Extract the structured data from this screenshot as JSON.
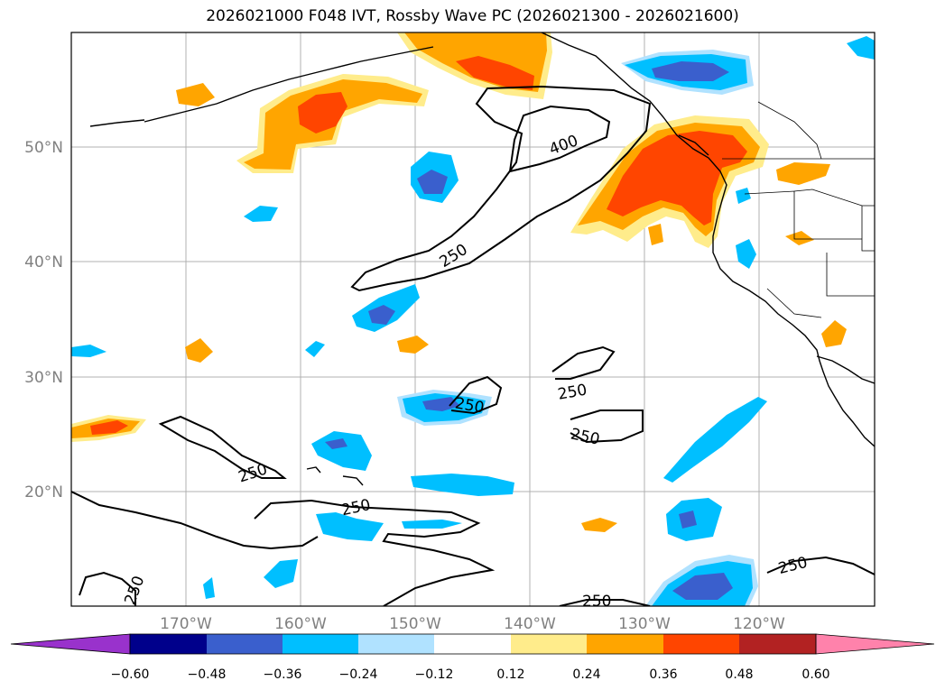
{
  "title": "2026021000 F048 IVT, Rossby Wave PC (2026021300 - 2026021600)",
  "map": {
    "lon_labels": [
      "170°W",
      "160°W",
      "150°W",
      "140°W",
      "130°W",
      "120°W"
    ],
    "lat_labels": [
      "50°N",
      "40°N",
      "30°N",
      "20°N"
    ],
    "contour_labels": [
      "400",
      "250",
      "250",
      "250",
      "250",
      "250",
      "250",
      "250",
      "250",
      "250"
    ]
  },
  "colorbar": {
    "ticks": [
      "−0.60",
      "−0.48",
      "−0.36",
      "−0.24",
      "−0.12",
      "0.12",
      "0.24",
      "0.36",
      "0.48",
      "0.60"
    ],
    "colors": [
      "#9932cc",
      "#00008b",
      "#3a5fcd",
      "#00bfff",
      "#b0e2ff",
      "#ffffff",
      "#ffec8b",
      "#ffa500",
      "#ff4500",
      "#b22222",
      "#ff82ab"
    ]
  }
}
